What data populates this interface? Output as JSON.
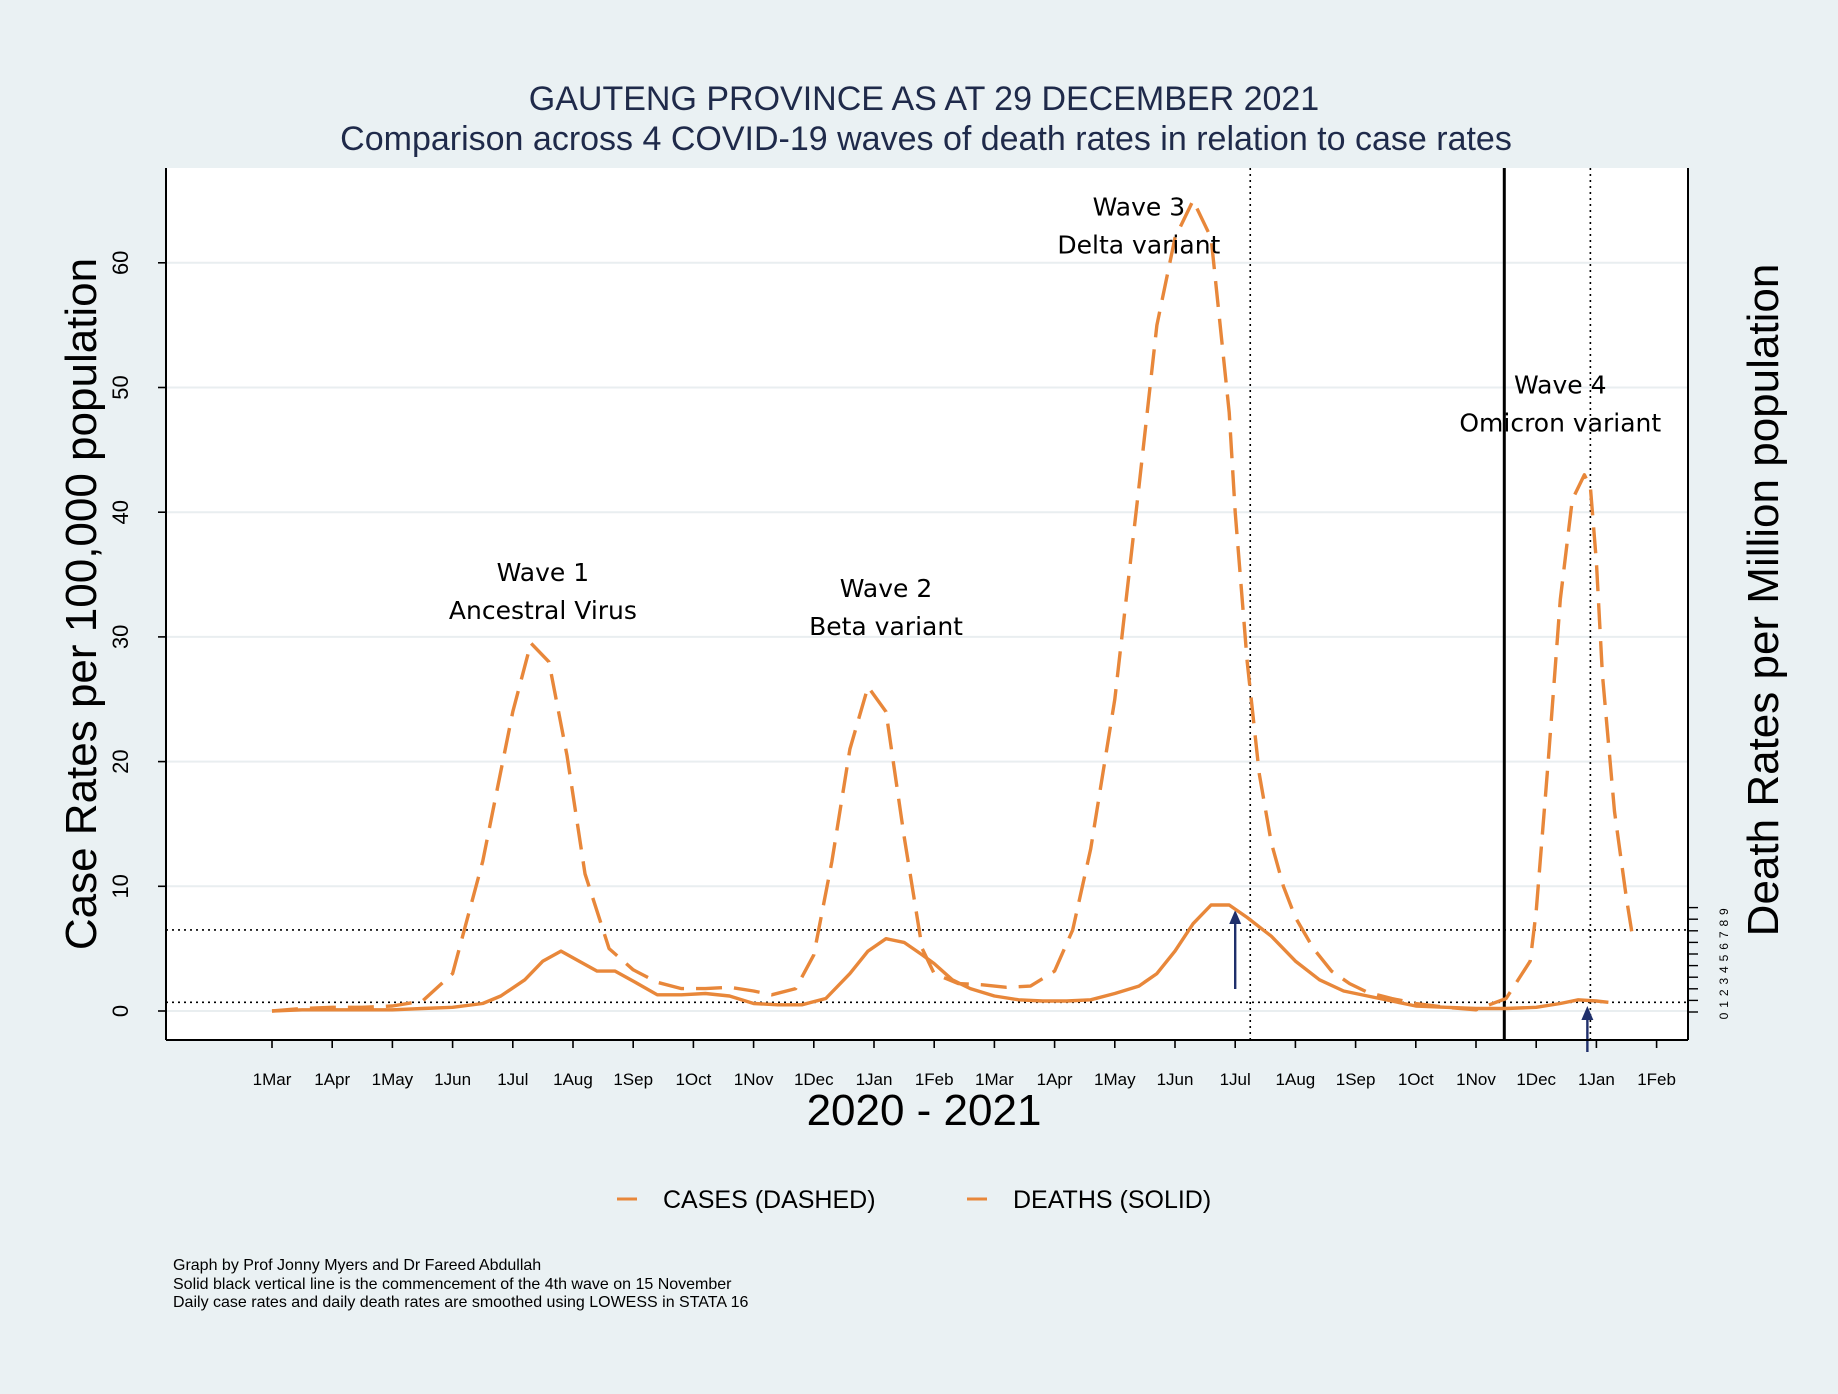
{
  "chart_data": {
    "type": "line",
    "title": "GAUTENG PROVINCE AS AT 29 DECEMBER 2021",
    "subtitle": "Comparison across 4 COVID-19 waves of death rates in relation to case rates",
    "xlabel": "2020 - 2021",
    "ylabel": "Case Rates per 100,000 population",
    "y2label": "Death Rates per Million population",
    "ylim": [
      0,
      68
    ],
    "yticks": [
      0,
      10,
      20,
      30,
      40,
      50,
      60
    ],
    "y2ticks": [
      "0",
      "1",
      "2",
      "3",
      "4",
      "5",
      "6",
      "7",
      "8",
      "9"
    ],
    "xticks": [
      "1Mar",
      "1Apr",
      "1May",
      "1Jun",
      "1Jul",
      "1Aug",
      "1Sep",
      "1Oct",
      "1Nov",
      "1Dec",
      "1Jan",
      "1Feb",
      "1Mar",
      "1Apr",
      "1May",
      "1Jun",
      "1Jul",
      "1Aug",
      "1Sep",
      "1Oct",
      "1Nov",
      "1Dec",
      "1Jan",
      "1Feb"
    ],
    "grid": true,
    "legend_position": "bottom",
    "series": [
      {
        "name": "CASES (DASHED)",
        "color": "#e8873a",
        "style": "dashed",
        "x": [
          0.0,
          0.5,
          1.0,
          1.5,
          2.0,
          2.5,
          3.0,
          3.5,
          4.0,
          4.3,
          4.6,
          4.9,
          5.2,
          5.6,
          6.0,
          6.4,
          6.8,
          7.2,
          7.6,
          8.0,
          8.3,
          8.7,
          9.0,
          9.3,
          9.6,
          9.9,
          10.2,
          10.5,
          10.8,
          11.0,
          11.4,
          11.8,
          12.2,
          12.6,
          13.0,
          13.3,
          13.6,
          14.0,
          14.4,
          14.7,
          15.0,
          15.3,
          15.6,
          15.9,
          16.0,
          16.2,
          16.4,
          16.6,
          16.8,
          17.0,
          17.3,
          17.6,
          17.9,
          18.2,
          18.6,
          19.0,
          19.5,
          20.0,
          20.5,
          20.9,
          21.0,
          21.2,
          21.4,
          21.6,
          21.8,
          21.9,
          22.0,
          22.1,
          22.3,
          22.5,
          22.6
        ],
        "y": [
          0.0,
          0.2,
          0.3,
          0.3,
          0.4,
          0.8,
          3.0,
          12.0,
          24.0,
          29.5,
          28.0,
          20.5,
          11.0,
          5.0,
          3.3,
          2.3,
          1.8,
          1.8,
          1.9,
          1.6,
          1.3,
          1.8,
          4.5,
          12.0,
          21.0,
          26.0,
          24.0,
          14.0,
          5.0,
          3.0,
          2.2,
          2.1,
          1.9,
          2.0,
          3.2,
          6.5,
          13.0,
          25.0,
          42.0,
          55.0,
          62.0,
          65.0,
          62.0,
          48.0,
          40.0,
          28.0,
          19.0,
          13.5,
          10.0,
          7.5,
          5.0,
          3.2,
          2.2,
          1.5,
          1.0,
          0.6,
          0.3,
          0.1,
          1.0,
          4.0,
          8.0,
          20.0,
          33.0,
          41.0,
          43.0,
          42.0,
          36.0,
          27.0,
          16.0,
          9.0,
          6.0
        ]
      },
      {
        "name": "DEATHS (SOLID)",
        "color": "#e8873a",
        "style": "solid",
        "x": [
          0.0,
          0.5,
          1.0,
          1.5,
          2.0,
          2.5,
          3.0,
          3.5,
          3.8,
          4.2,
          4.5,
          4.8,
          5.1,
          5.4,
          5.7,
          6.0,
          6.4,
          6.8,
          7.2,
          7.6,
          8.0,
          8.4,
          8.8,
          9.2,
          9.6,
          9.9,
          10.2,
          10.5,
          10.8,
          11.0,
          11.3,
          11.6,
          12.0,
          12.4,
          12.8,
          13.2,
          13.6,
          14.0,
          14.4,
          14.7,
          15.0,
          15.3,
          15.6,
          15.9,
          16.2,
          16.6,
          17.0,
          17.4,
          17.8,
          18.2,
          18.6,
          19.0,
          19.5,
          20.0,
          20.5,
          21.0,
          21.4,
          21.7,
          22.0,
          22.2
        ],
        "y": [
          0.0,
          0.1,
          0.1,
          0.1,
          0.1,
          0.2,
          0.3,
          0.6,
          1.2,
          2.5,
          4.0,
          4.8,
          4.0,
          3.2,
          3.2,
          2.4,
          1.3,
          1.3,
          1.4,
          1.2,
          0.6,
          0.5,
          0.5,
          1.0,
          3.0,
          4.8,
          5.8,
          5.5,
          4.5,
          3.8,
          2.5,
          1.8,
          1.2,
          0.9,
          0.8,
          0.8,
          0.9,
          1.4,
          2.0,
          3.0,
          4.8,
          7.0,
          8.5,
          8.5,
          7.5,
          6.0,
          4.0,
          2.5,
          1.6,
          1.2,
          0.8,
          0.4,
          0.3,
          0.2,
          0.2,
          0.3,
          0.6,
          0.9,
          0.8,
          0.7
        ]
      }
    ],
    "reference_lines": {
      "wave4_start_x": 20.47,
      "dotted_vertical_x": [
        16.25,
        21.9
      ],
      "dotted_horizontal_y": [
        0.7,
        6.5
      ],
      "arrows_x": [
        16.0,
        21.85
      ]
    },
    "annotations": [
      {
        "id": "wave1",
        "line1": "Wave 1",
        "line2": "Ancestral Virus",
        "x": 4.5,
        "y": 34.5
      },
      {
        "id": "wave2",
        "line1": "Wave 2",
        "line2": "Beta  variant",
        "x": 10.2,
        "y": 33.2
      },
      {
        "id": "wave3",
        "line1": "Wave 3",
        "line2": "Delta  variant",
        "x": 14.4,
        "y": 63.8
      },
      {
        "id": "wave4",
        "line1": "Wave 4",
        "line2": "Omicron  variant",
        "x": 21.4,
        "y": 49.5
      }
    ]
  },
  "legend": {
    "cases_label": "CASES (DASHED)",
    "deaths_label": "DEATHS (SOLID)"
  },
  "notes": [
    "Graph by Prof Jonny Myers and Dr Fareed Abdullah",
    "Solid black vertical line is the commencement of the 4th wave on 15 November",
    "Daily case rates and daily death rates are smoothed using LOWESS in STATA 16"
  ]
}
